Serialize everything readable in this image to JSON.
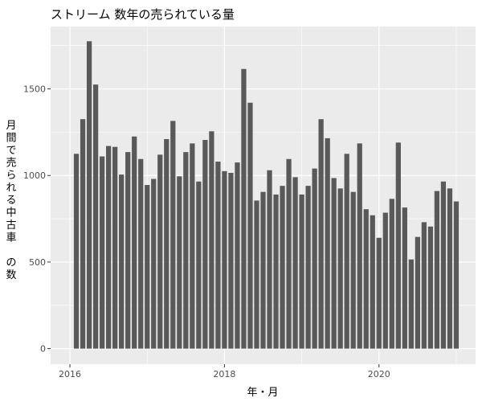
{
  "chart_data": {
    "type": "bar",
    "title": "ストリーム 数年の売られている量",
    "xlabel": "年・月",
    "ylabel": "月間で売られる中古車 の数",
    "x_start": "2016-02",
    "x_end": "2021-01",
    "xlim": [
      "2015-10",
      "2021-04"
    ],
    "ylim": [
      -90,
      1860
    ],
    "x_ticks": [
      "2016",
      "2018",
      "2020"
    ],
    "y_ticks": [
      0,
      500,
      1000,
      1500
    ],
    "grid": true,
    "bar_color": "#595959",
    "panel_color": "#ebebeb",
    "values": [
      1125,
      1325,
      1775,
      1525,
      1110,
      1170,
      1165,
      1005,
      1135,
      1225,
      1095,
      945,
      980,
      1120,
      1210,
      1315,
      995,
      1135,
      1185,
      965,
      1205,
      1255,
      1080,
      1025,
      1015,
      1075,
      1615,
      1420,
      855,
      905,
      1030,
      890,
      940,
      1095,
      990,
      890,
      940,
      1040,
      1325,
      1215,
      985,
      925,
      1125,
      905,
      1185,
      805,
      770,
      640,
      785,
      865,
      1190,
      815,
      515,
      645,
      730,
      705,
      910,
      965,
      925,
      850
    ]
  }
}
